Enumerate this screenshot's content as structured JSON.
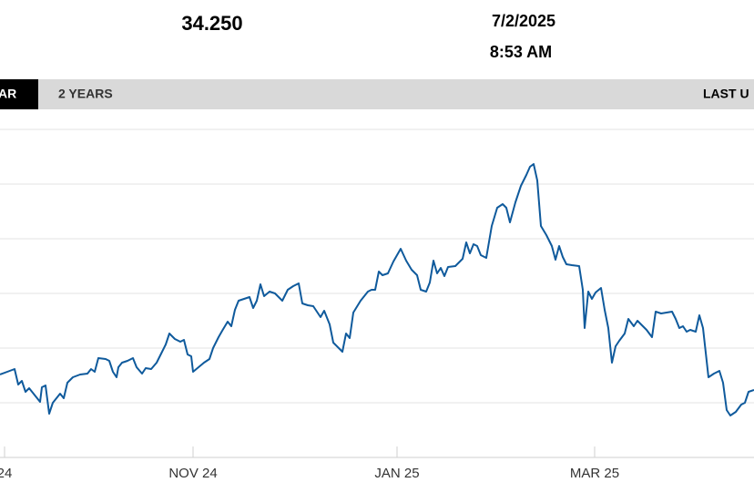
{
  "header": {
    "price": "34.250",
    "date": "7/2/2025",
    "time": "8:53 AM"
  },
  "tabs": {
    "items": [
      "AR",
      "2 YEARS"
    ],
    "last_updated": "LAST U"
  },
  "chart_data": {
    "type": "line",
    "x": [
      0,
      4,
      8,
      10,
      12,
      14,
      16,
      20,
      22,
      23,
      25,
      27,
      29,
      33,
      35,
      37,
      40,
      44,
      48,
      50,
      52,
      54,
      58,
      60,
      62,
      64,
      65,
      67,
      70,
      73,
      75,
      78,
      80,
      83,
      86,
      89,
      91,
      93,
      96,
      99,
      101,
      103,
      105,
      106,
      109,
      112,
      115,
      117,
      120,
      122,
      125,
      127,
      129,
      131,
      134,
      137,
      139,
      141,
      143,
      145,
      148,
      151,
      155,
      158,
      161,
      164,
      166,
      169,
      172,
      174,
      176,
      178,
      181,
      183,
      186,
      188,
      190,
      192,
      194,
      198,
      202,
      204,
      206,
      208,
      210,
      213,
      216,
      220,
      223,
      226,
      229,
      231,
      234,
      236,
      238,
      240,
      242,
      244,
      246,
      250,
      252,
      254,
      256,
      258,
      260,
      262,
      264,
      267,
      270,
      273,
      276,
      278,
      280,
      283,
      286,
      289,
      291,
      293,
      295,
      297,
      300,
      303,
      305,
      307,
      309,
      311,
      314,
      318,
      320,
      321,
      323,
      325,
      327,
      330,
      332,
      334,
      336,
      338,
      340,
      343,
      345,
      348,
      350,
      353,
      355,
      358,
      360,
      363,
      366,
      369,
      371,
      373,
      375,
      377,
      379,
      382,
      384,
      386,
      389,
      392,
      395,
      397,
      399,
      401,
      404,
      407,
      409,
      411,
      414
    ],
    "series": [
      {
        "color": "#0f5a9c",
        "values": [
          91,
          94,
          97,
          80,
          84,
          72,
          76,
          66,
          61,
          77,
          79,
          48,
          60,
          70,
          65,
          82,
          88,
          91,
          92,
          97,
          94,
          109,
          108,
          106,
          94,
          88,
          99,
          104,
          106,
          109,
          99,
          92,
          98,
          97,
          104,
          116,
          124,
          136,
          130,
          127,
          129,
          113,
          111,
          94,
          99,
          104,
          108,
          120,
          132,
          139,
          149,
          144,
          162,
          172,
          174,
          176,
          164,
          172,
          190,
          177,
          182,
          180,
          172,
          184,
          188,
          191,
          169,
          167,
          166,
          160,
          154,
          161,
          146,
          126,
          120,
          116,
          136,
          131,
          159,
          172,
          182,
          184,
          184,
          204,
          200,
          202,
          215,
          229,
          216,
          206,
          200,
          184,
          182,
          192,
          216,
          202,
          208,
          199,
          209,
          210,
          214,
          218,
          236,
          224,
          234,
          232,
          222,
          219,
          254,
          274,
          278,
          274,
          258,
          280,
          298,
          310,
          319,
          322,
          304,
          254,
          244,
          232,
          217,
          232,
          220,
          212,
          211,
          210,
          184,
          142,
          182,
          174,
          181,
          186,
          162,
          142,
          104,
          122,
          128,
          136,
          152,
          144,
          150,
          144,
          140,
          132,
          160,
          158,
          159,
          160,
          152,
          142,
          144,
          138,
          140,
          138,
          156,
          142,
          88,
          92,
          95,
          82,
          52,
          46,
          50,
          58,
          60,
          72,
          74
        ]
      }
    ],
    "xlim": [
      0,
      414
    ],
    "xticks": [
      {
        "value": 2.5,
        "label": "24"
      },
      {
        "value": 106,
        "label": "NOV 24"
      },
      {
        "value": 218,
        "label": "JAN 25"
      },
      {
        "value": 326.5,
        "label": "MAR 25"
      }
    ],
    "ylim": [
      0,
      360
    ],
    "yticks": [
      0,
      60,
      120,
      180,
      240,
      300,
      360
    ],
    "grid": true
  }
}
